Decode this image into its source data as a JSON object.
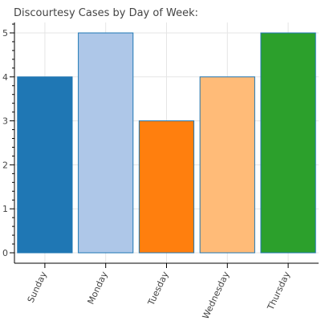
{
  "chart_data": {
    "type": "bar",
    "title": "Discourtesy Cases by Day of Week:",
    "xlabel": "",
    "ylabel": "",
    "categories": [
      "Sunday",
      "Monday",
      "Tuesday",
      "Wednesday",
      "Thursday"
    ],
    "values": [
      4,
      5,
      3,
      4,
      5
    ],
    "colors": [
      "#1f77b4",
      "#aec7e8",
      "#ff7f0e",
      "#ffbb78",
      "#2ca02c"
    ],
    "outline_color": "#1f77b4",
    "ylim": [
      0,
      5.25
    ],
    "yticks": [
      "0",
      "1",
      "2",
      "3",
      "4",
      "5"
    ],
    "grid": true,
    "legend": "none"
  }
}
